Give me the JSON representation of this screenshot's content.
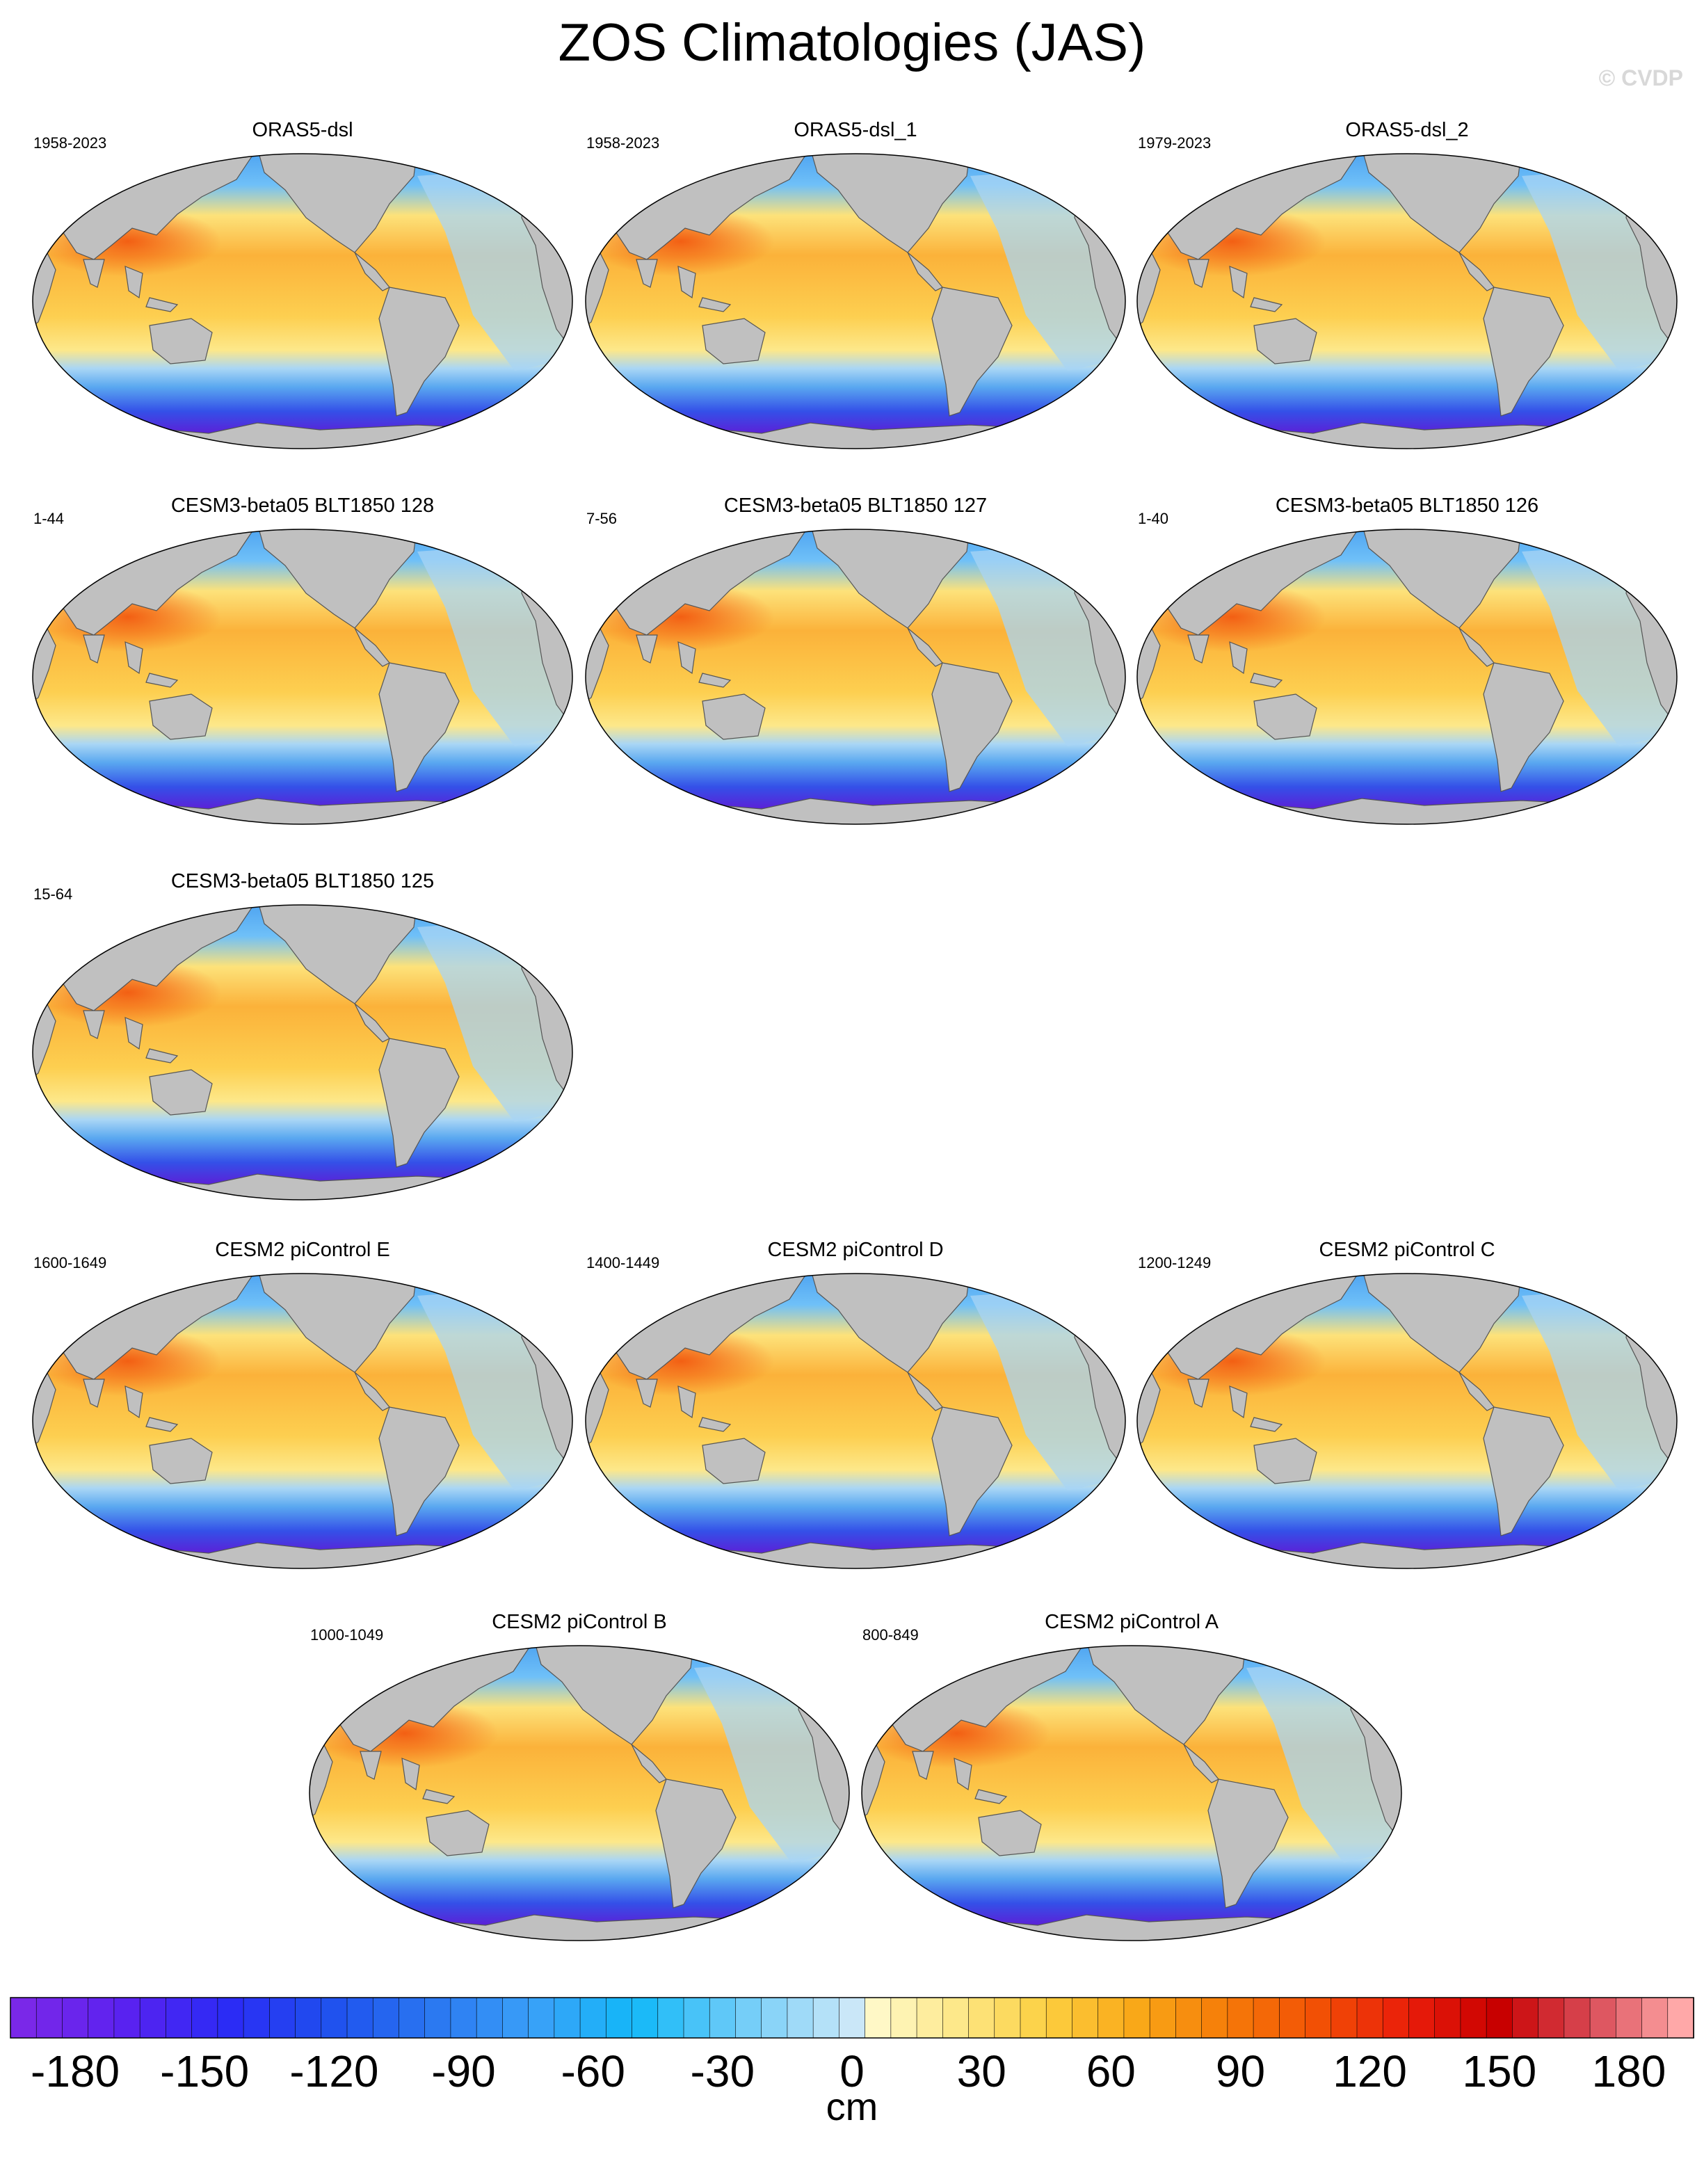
{
  "title": "ZOS Climatologies (JAS)",
  "watermark": "© CVDP",
  "panels": [
    {
      "title": "ORAS5-dsl",
      "years": "1958-2023"
    },
    {
      "title": "ORAS5-dsl_1",
      "years": "1958-2023"
    },
    {
      "title": "ORAS5-dsl_2",
      "years": "1979-2023"
    },
    {
      "title": "CESM3-beta05 BLT1850 128",
      "years": "1-44"
    },
    {
      "title": "CESM3-beta05 BLT1850 127",
      "years": "7-56"
    },
    {
      "title": "CESM3-beta05 BLT1850 126",
      "years": "1-40"
    },
    {
      "title": "CESM3-beta05 BLT1850 125",
      "years": "15-64"
    },
    {
      "title": "CESM2 piControl E",
      "years": "1600-1649"
    },
    {
      "title": "CESM2 piControl D",
      "years": "1400-1449"
    },
    {
      "title": "CESM2 piControl C",
      "years": "1200-1249"
    },
    {
      "title": "CESM2 piControl B",
      "years": "1000-1049"
    },
    {
      "title": "CESM2 piControl A",
      "years": "800-849"
    }
  ],
  "colorbar": {
    "ticks": [
      "-180",
      "-150",
      "-120",
      "-90",
      "-60",
      "-30",
      "0",
      "30",
      "60",
      "90",
      "120",
      "150",
      "180"
    ],
    "label": "cm",
    "min": -195,
    "max": 195,
    "step": 6
  },
  "colors": {
    "land": "#c0c0c0",
    "deep_negative": "#7a28e8",
    "zero": "#fffbd0",
    "deep_positive": "#c80000"
  }
}
